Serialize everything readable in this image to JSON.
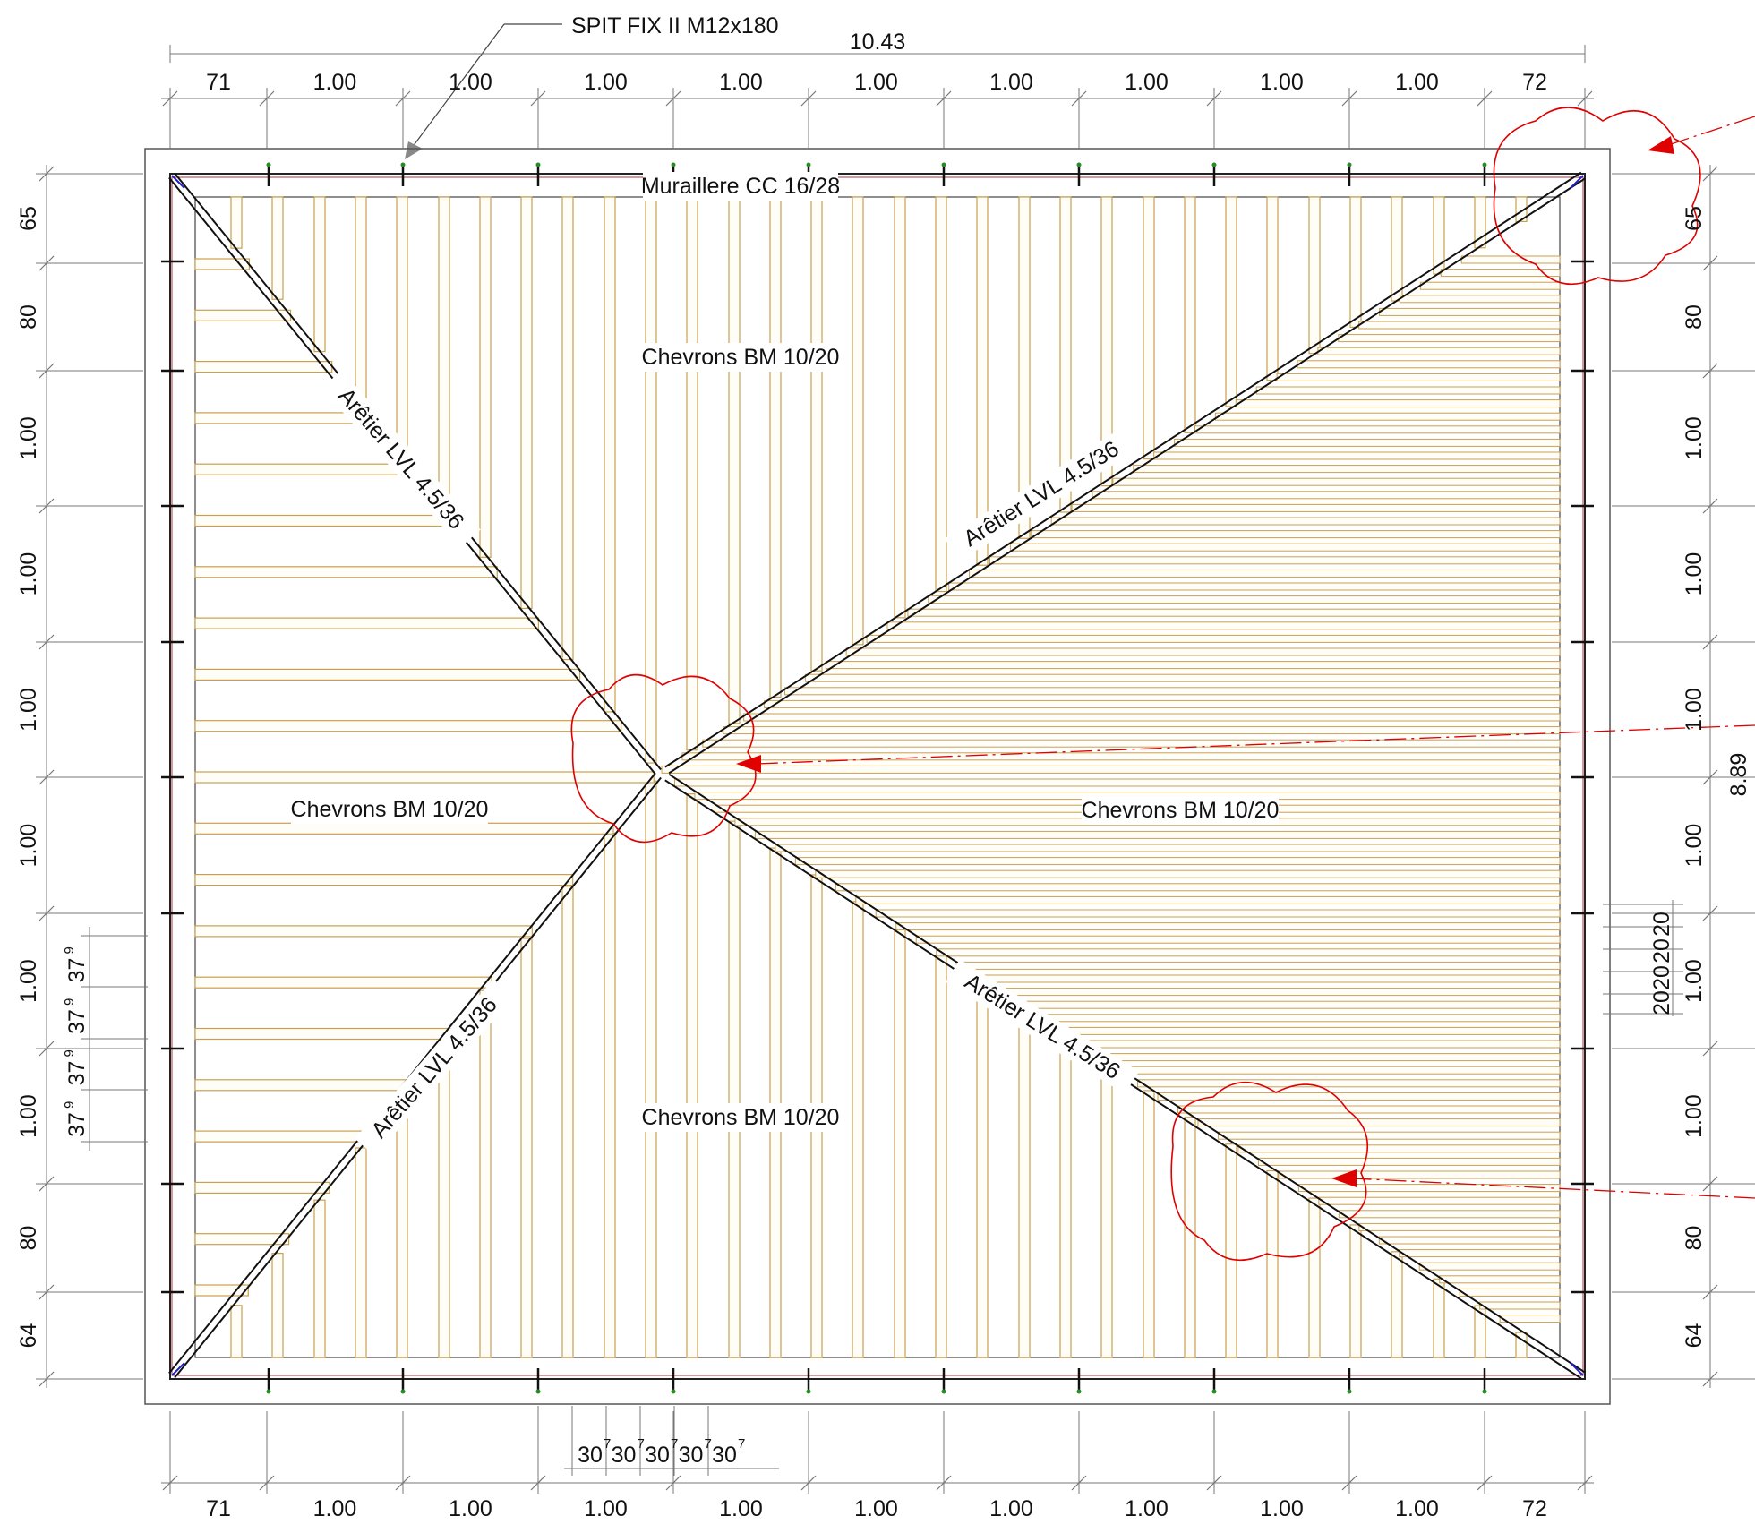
{
  "drawing": {
    "anchor_label": "SPIT FIX II M12x180",
    "overall_width": "10.43",
    "overall_height": "8.89",
    "top_segments": [
      "71",
      "1.00",
      "1.00",
      "1.00",
      "1.00",
      "1.00",
      "1.00",
      "1.00",
      "1.00",
      "1.00",
      "72"
    ],
    "bottom_segments": [
      "71",
      "1.00",
      "1.00",
      "1.00",
      "1.00",
      "1.00",
      "1.00",
      "1.00",
      "1.00",
      "1.00",
      "72"
    ],
    "side_segments": [
      "65",
      "80",
      "1.00",
      "1.00",
      "1.00",
      "1.00",
      "1.00",
      "1.00",
      "80",
      "64"
    ],
    "left_small_dims": [
      "37",
      "37",
      "37",
      "37"
    ],
    "left_small_sup": "9",
    "bottom_small_dims": [
      "30",
      "30",
      "30",
      "30",
      "30"
    ],
    "bottom_small_sup": "7",
    "right_small_dims": [
      "20",
      "20",
      "20",
      "20"
    ],
    "labels": {
      "wall_plate": "Muraillere CC 16/28",
      "rafters_top": "Chevrons BM 10/20",
      "rafters_left": "Chevrons BM 10/20",
      "rafters_right": "Chevrons BM 10/20",
      "rafters_bottom": "Chevrons BM 10/20",
      "hip_top_left": "Arêtier LVL 4.5/36",
      "hip_top_right": "Arêtier LVL 4.5/36",
      "hip_bottom_left": "Arêtier LVL 4.5/36",
      "hip_bottom_right": "Arêtier LVL 4.5/36"
    },
    "colors": {
      "line": "#333333",
      "rafter": "#c8a050",
      "revision": "#e00000",
      "blue": "#2020c0"
    }
  }
}
